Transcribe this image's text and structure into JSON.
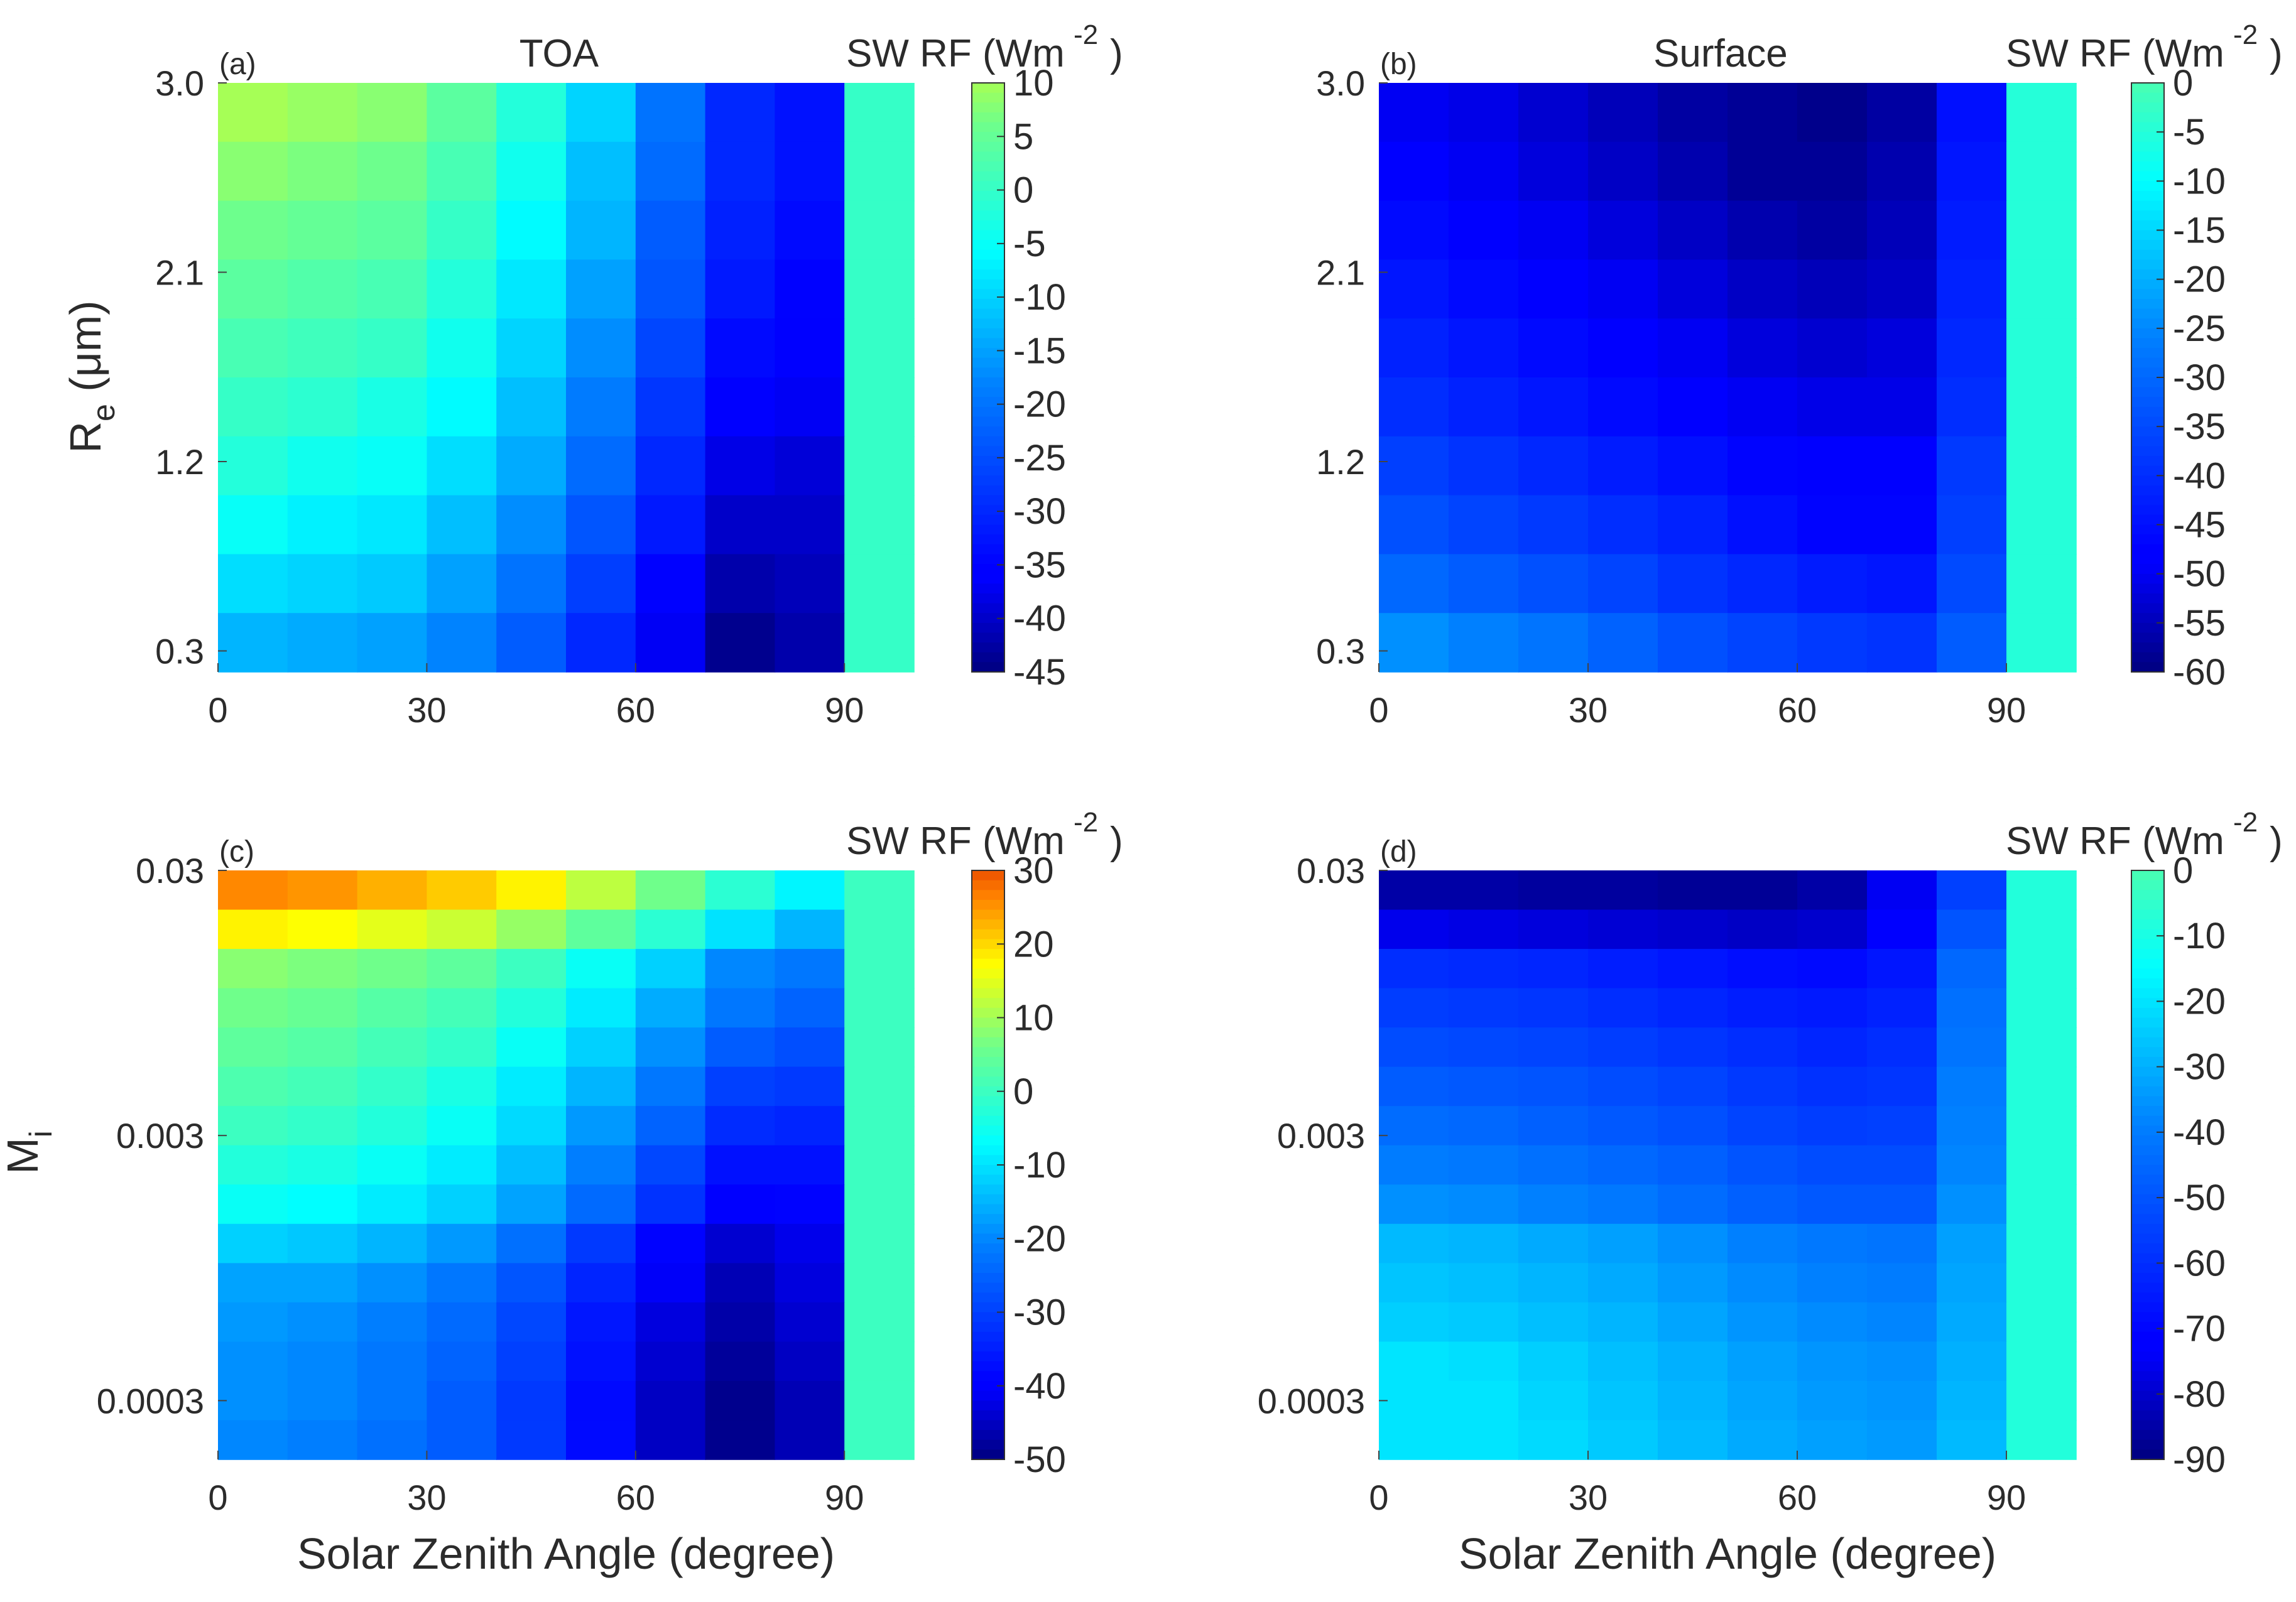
{
  "chart_data": [
    {
      "type": "heatmap",
      "panel": "(a)",
      "title": "TOA",
      "colorbar_label": "SW RF (Wm",
      "colorbar_exponent": "-2",
      "colorbar_close": ")",
      "colormap": "parula-jet",
      "clim": [
        -45,
        10
      ],
      "colorbar_ticks": [
        "10",
        "5",
        "0",
        "-5",
        "-10",
        "-15",
        "-20",
        "-25",
        "-30",
        "-35",
        "-40",
        "-45"
      ],
      "x_range": [
        0,
        100
      ],
      "x_ticks": [
        "0",
        "30",
        "60",
        "90"
      ],
      "x_tick_values": [
        0,
        30,
        60,
        90
      ],
      "y_ticks": [
        "3.0",
        "2.1",
        "1.2",
        "0.3"
      ],
      "y_tick_values": [
        3.0,
        2.1,
        1.2,
        0.3
      ],
      "y_range": [
        0.2,
        3.0
      ],
      "ylabel_main": "R",
      "ylabel_sub": "e",
      "ylabel_rest": " (μm)",
      "xlabel": "",
      "x_centers": [
        5,
        15,
        25,
        35,
        45,
        55,
        65,
        75,
        85,
        95
      ],
      "rows": [
        [
          10,
          9,
          8,
          4,
          -2,
          -10,
          -20,
          -30,
          -33,
          0
        ],
        [
          8,
          7,
          6,
          2,
          -4,
          -12,
          -21,
          -30,
          -33,
          0
        ],
        [
          6,
          5,
          4,
          0,
          -6,
          -13,
          -23,
          -31,
          -34,
          0
        ],
        [
          4,
          3,
          2,
          -2,
          -8,
          -15,
          -24,
          -32,
          -35,
          0
        ],
        [
          2,
          1,
          0,
          -4,
          -10,
          -17,
          -26,
          -34,
          -36,
          0
        ],
        [
          0,
          -1,
          -3,
          -6,
          -12,
          -19,
          -28,
          -36,
          -37,
          0
        ],
        [
          -2,
          -4,
          -5,
          -9,
          -14,
          -21,
          -30,
          -38,
          -39,
          0
        ],
        [
          -5,
          -7,
          -8,
          -12,
          -17,
          -24,
          -32,
          -40,
          -40,
          0
        ],
        [
          -9,
          -10,
          -11,
          -15,
          -20,
          -27,
          -35,
          -42,
          -41,
          0
        ],
        [
          -13,
          -14,
          -15,
          -18,
          -23,
          -30,
          -37,
          -44,
          -42,
          0
        ]
      ]
    },
    {
      "type": "heatmap",
      "panel": "(b)",
      "title": "Surface",
      "colorbar_label": "SW RF (Wm",
      "colorbar_exponent": "-2",
      "colorbar_close": ")",
      "colormap": "parula-jet",
      "clim": [
        -60,
        0
      ],
      "colorbar_ticks": [
        "0",
        "-5",
        "-10",
        "-15",
        "-20",
        "-25",
        "-30",
        "-35",
        "-40",
        "-45",
        "-50",
        "-55",
        "-60"
      ],
      "x_range": [
        0,
        100
      ],
      "x_ticks": [
        "0",
        "30",
        "60",
        "90"
      ],
      "x_tick_values": [
        0,
        30,
        60,
        90
      ],
      "y_ticks": [
        "3.0",
        "2.1",
        "1.2",
        "0.3"
      ],
      "y_tick_values": [
        3.0,
        2.1,
        1.2,
        0.3
      ],
      "y_range": [
        0.2,
        3.0
      ],
      "xlabel": "",
      "x_centers": [
        5,
        15,
        25,
        35,
        45,
        55,
        65,
        75,
        85,
        95
      ],
      "rows": [
        [
          -50,
          -51,
          -53,
          -55,
          -57,
          -58,
          -59,
          -57,
          -45,
          -5
        ],
        [
          -48,
          -50,
          -52,
          -54,
          -56,
          -58,
          -58,
          -56,
          -44,
          -5
        ],
        [
          -46,
          -48,
          -50,
          -52,
          -54,
          -56,
          -57,
          -55,
          -43,
          -5
        ],
        [
          -44,
          -46,
          -48,
          -50,
          -52,
          -54,
          -55,
          -54,
          -42,
          -5
        ],
        [
          -42,
          -44,
          -46,
          -48,
          -50,
          -52,
          -53,
          -52,
          -41,
          -5
        ],
        [
          -40,
          -42,
          -44,
          -46,
          -48,
          -50,
          -51,
          -51,
          -40,
          -5
        ],
        [
          -37,
          -39,
          -41,
          -43,
          -45,
          -47,
          -49,
          -49,
          -38,
          -5
        ],
        [
          -34,
          -36,
          -38,
          -40,
          -42,
          -45,
          -47,
          -47,
          -37,
          -5
        ],
        [
          -30,
          -32,
          -34,
          -36,
          -39,
          -41,
          -43,
          -44,
          -35,
          -5
        ],
        [
          -24,
          -26,
          -28,
          -31,
          -34,
          -36,
          -38,
          -39,
          -32,
          -5
        ]
      ]
    },
    {
      "type": "heatmap",
      "panel": "(c)",
      "title": "",
      "colorbar_label": "SW RF (Wm",
      "colorbar_exponent": "-2",
      "colorbar_close": ")",
      "colormap": "jet",
      "clim": [
        -50,
        30
      ],
      "colorbar_ticks": [
        "30",
        "20",
        "10",
        "0",
        "-10",
        "-20",
        "-30",
        "-40",
        "-50"
      ],
      "x_range": [
        0,
        100
      ],
      "x_ticks": [
        "0",
        "30",
        "60",
        "90"
      ],
      "x_tick_values": [
        0,
        30,
        60,
        90
      ],
      "y_ticks": [
        "0.03",
        "0.003",
        "0.0003"
      ],
      "y_tick_values": [
        0.03,
        0.003,
        0.0003
      ],
      "y_scale": "log",
      "y_range": [
        0.00018,
        0.03
      ],
      "ylabel_main": "M",
      "ylabel_sub": "i",
      "xlabel": "Solar Zenith Angle (degree)",
      "x_centers": [
        5,
        15,
        25,
        35,
        45,
        55,
        65,
        75,
        85,
        95
      ],
      "rows": [
        [
          26,
          25,
          23,
          21,
          18,
          12,
          6,
          -2,
          -8,
          0
        ],
        [
          18,
          17,
          15,
          13,
          9,
          4,
          -2,
          -10,
          -15,
          0
        ],
        [
          8,
          7,
          6,
          4,
          0,
          -6,
          -12,
          -20,
          -22,
          0
        ],
        [
          6,
          5,
          3,
          1,
          -3,
          -9,
          -16,
          -22,
          -25,
          0
        ],
        [
          4,
          3,
          1,
          -1,
          -6,
          -12,
          -19,
          -26,
          -28,
          0
        ],
        [
          2,
          1,
          -1,
          -4,
          -9,
          -15,
          -22,
          -30,
          -31,
          0
        ],
        [
          0,
          -1,
          -3,
          -6,
          -11,
          -18,
          -25,
          -33,
          -34,
          0
        ],
        [
          -3,
          -4,
          -6,
          -9,
          -14,
          -21,
          -29,
          -37,
          -37,
          0
        ],
        [
          -6,
          -7,
          -9,
          -12,
          -17,
          -24,
          -32,
          -40,
          -39,
          0
        ],
        [
          -12,
          -13,
          -15,
          -18,
          -23,
          -31,
          -39,
          -44,
          -42,
          0
        ],
        [
          -17,
          -17,
          -19,
          -22,
          -27,
          -34,
          -41,
          -46,
          -43,
          0
        ],
        [
          -18,
          -19,
          -21,
          -24,
          -29,
          -36,
          -43,
          -47,
          -44,
          0
        ],
        [
          -19,
          -20,
          -22,
          -25,
          -30,
          -37,
          -44,
          -48,
          -45,
          0
        ],
        [
          -19,
          -20,
          -22,
          -26,
          -31,
          -38,
          -45,
          -49,
          -46,
          0
        ],
        [
          -20,
          -21,
          -23,
          -26,
          -31,
          -38,
          -45,
          -49,
          -46,
          0
        ]
      ]
    },
    {
      "type": "heatmap",
      "panel": "(d)",
      "title": "",
      "colorbar_label": "SW RF (Wm",
      "colorbar_exponent": "-2",
      "colorbar_close": ")",
      "colormap": "parula-jet",
      "clim": [
        -90,
        0
      ],
      "colorbar_ticks": [
        "0",
        "-10",
        "-20",
        "-30",
        "-40",
        "-50",
        "-60",
        "-70",
        "-80",
        "-90"
      ],
      "x_range": [
        0,
        100
      ],
      "x_ticks": [
        "0",
        "30",
        "60",
        "90"
      ],
      "x_tick_values": [
        0,
        30,
        60,
        90
      ],
      "y_ticks": [
        "0.03",
        "0.003",
        "0.0003"
      ],
      "y_tick_values": [
        0.03,
        0.003,
        0.0003
      ],
      "y_scale": "log",
      "y_range": [
        0.00018,
        0.03
      ],
      "xlabel": "Solar Zenith Angle (degree)",
      "x_centers": [
        5,
        15,
        25,
        35,
        45,
        55,
        65,
        75,
        85,
        95
      ],
      "rows": [
        [
          -85,
          -85,
          -86,
          -86,
          -87,
          -87,
          -85,
          -75,
          -55,
          -8
        ],
        [
          -76,
          -77,
          -78,
          -79,
          -80,
          -81,
          -80,
          -72,
          -50,
          -8
        ],
        [
          -60,
          -61,
          -62,
          -64,
          -66,
          -68,
          -69,
          -66,
          -45,
          -8
        ],
        [
          -56,
          -57,
          -58,
          -60,
          -62,
          -64,
          -65,
          -63,
          -43,
          -8
        ],
        [
          -52,
          -53,
          -54,
          -56,
          -58,
          -60,
          -62,
          -60,
          -42,
          -8
        ],
        [
          -48,
          -49,
          -50,
          -52,
          -54,
          -57,
          -59,
          -58,
          -40,
          -8
        ],
        [
          -44,
          -45,
          -47,
          -49,
          -51,
          -54,
          -56,
          -55,
          -39,
          -8
        ],
        [
          -40,
          -41,
          -43,
          -45,
          -47,
          -50,
          -52,
          -52,
          -38,
          -8
        ],
        [
          -36,
          -37,
          -39,
          -41,
          -44,
          -47,
          -49,
          -49,
          -36,
          -8
        ],
        [
          -28,
          -29,
          -31,
          -33,
          -36,
          -39,
          -41,
          -42,
          -33,
          -8
        ],
        [
          -26,
          -27,
          -29,
          -31,
          -34,
          -37,
          -39,
          -40,
          -32,
          -8
        ],
        [
          -24,
          -25,
          -27,
          -29,
          -32,
          -35,
          -37,
          -38,
          -31,
          -8
        ],
        [
          -20,
          -21,
          -24,
          -27,
          -30,
          -33,
          -35,
          -36,
          -30,
          -8
        ],
        [
          -20,
          -20,
          -23,
          -26,
          -29,
          -32,
          -34,
          -35,
          -29,
          -8
        ],
        [
          -20,
          -20,
          -22,
          -25,
          -28,
          -31,
          -33,
          -34,
          -28,
          -8
        ]
      ]
    }
  ]
}
